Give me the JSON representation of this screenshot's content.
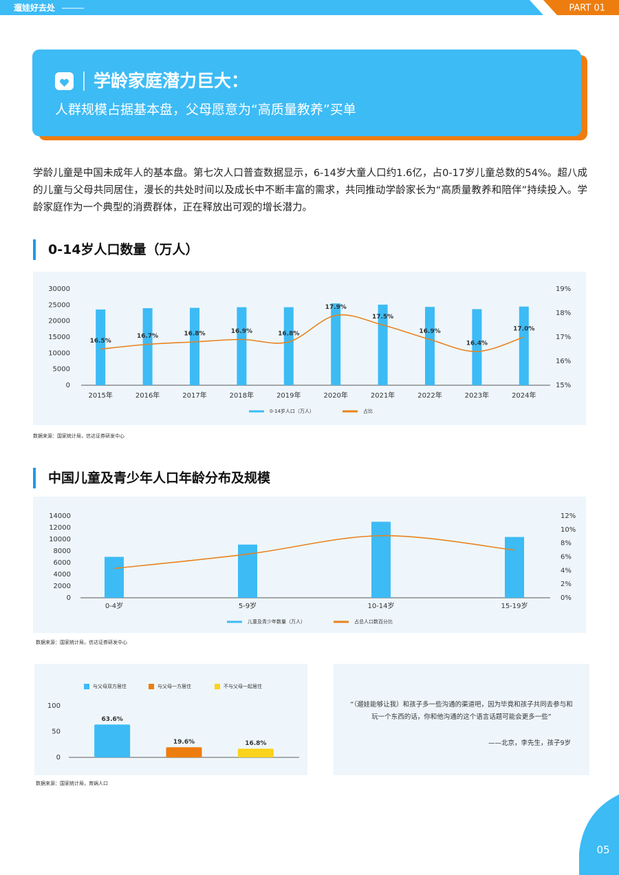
{
  "header": {
    "brand": "遛娃好去处",
    "part": "PART 01"
  },
  "banner": {
    "title": "学龄家庭潜力巨大：",
    "subtitle": "人群规模占据基本盘，父母愿意为“高质量教养”买单"
  },
  "paragraph": "学龄儿童是中国未成年人的基本盘。第七次人口普查数据显示，6-14岁大童人口约1.6亿，占0-17岁儿童总数的54%。超八成的儿童与父母共同居住，漫长的共处时间以及成长中不断丰富的需求，共同推动学龄家长为“高质量教养和陪伴”持续投入。学龄家庭作为一个典型的消费群体，正在释放出可观的增长潜力。",
  "chart_data": [
    {
      "type": "combo",
      "title": "0-14岁人口数量（万人）",
      "source": "数据来源：国家统计局，信达证券研发中心",
      "categories": [
        "2015年",
        "2016年",
        "2017年",
        "2018年",
        "2019年",
        "2020年",
        "2021年",
        "2022年",
        "2023年",
        "2024年"
      ],
      "series": [
        {
          "name": "0-14岁人口（万人）",
          "type": "bar",
          "color": "#3dbbf5",
          "values": [
            23600,
            24000,
            24100,
            24300,
            24300,
            25500,
            25100,
            24400,
            23700,
            24500
          ]
        },
        {
          "name": "占比",
          "type": "line",
          "axis": "y2",
          "color": "#e8821e",
          "values": [
            16.5,
            16.7,
            16.8,
            16.9,
            16.8,
            17.9,
            17.5,
            16.9,
            16.4,
            17.0
          ],
          "value_labels": [
            "16.5%",
            "16.7%",
            "16.8%",
            "16.9%",
            "16.8%",
            "17.9%",
            "17.5%",
            "16.9%",
            "16.4%",
            "17.0%"
          ]
        }
      ],
      "ylim": [
        0,
        30000
      ],
      "yticks": [
        0,
        5000,
        10000,
        15000,
        20000,
        25000,
        30000
      ],
      "y2lim": [
        15,
        19
      ],
      "y2ticks": [
        {
          "value": 15,
          "label": "15%"
        },
        {
          "value": 16,
          "label": "16%"
        },
        {
          "value": 17,
          "label": "17%"
        },
        {
          "value": 18,
          "label": "18%"
        },
        {
          "value": 19,
          "label": "19%"
        }
      ]
    },
    {
      "type": "combo",
      "title": "中国儿童及青少年人口年龄分布及规模",
      "source": "数据来源：国家统计局，信达证券研发中心",
      "categories": [
        "0-4岁",
        "5-9岁",
        "10-14岁",
        "15-19岁"
      ],
      "series": [
        {
          "name": "儿童及青少年数量（万人）",
          "type": "bar",
          "color": "#3dbbf5",
          "values": [
            7000,
            9100,
            13000,
            10400
          ]
        },
        {
          "name": "占总人口数百分比",
          "type": "line",
          "axis": "y2",
          "color": "#e8821e",
          "values": [
            4.3,
            6.4,
            9.1,
            7.0
          ]
        }
      ],
      "ylim": [
        0,
        14000
      ],
      "yticks": [
        0,
        2000,
        4000,
        6000,
        8000,
        10000,
        12000,
        14000
      ],
      "y2lim": [
        0,
        12
      ],
      "y2ticks": [
        {
          "value": 0,
          "label": "0%"
        },
        {
          "value": 2,
          "label": "2%"
        },
        {
          "value": 4,
          "label": "4%"
        },
        {
          "value": 6,
          "label": "6%"
        },
        {
          "value": 8,
          "label": "8%"
        },
        {
          "value": 10,
          "label": "10%"
        },
        {
          "value": 12,
          "label": "12%"
        }
      ]
    },
    {
      "type": "bar",
      "source": "数据来源：国家统计局，育娲人口",
      "series": [
        {
          "name": "与父母双方居住",
          "color": "#3dbbf5",
          "values": [
            63.6
          ],
          "value_labels": [
            "63.6%"
          ]
        },
        {
          "name": "与父母一方居住",
          "color": "#ee7d0f",
          "values": [
            19.6
          ],
          "value_labels": [
            "19.6%"
          ]
        },
        {
          "name": "不与父母一起居住",
          "color": "#fbd21c",
          "values": [
            16.8
          ],
          "value_labels": [
            "16.8%"
          ]
        }
      ],
      "ylim": [
        0,
        100
      ],
      "yticks": [
        0,
        50,
        100
      ]
    }
  ],
  "quote": {
    "lines": [
      "“（遛娃能够让我）和孩子多一些沟通的渠道吧，因为毕竟和孩子共同去参与和",
      "玩一个东西的话，你和他沟通的这个语言话题可能会更多一些”"
    ],
    "attribution": "——北京，李先生，孩子9岁"
  },
  "page_number": "05"
}
